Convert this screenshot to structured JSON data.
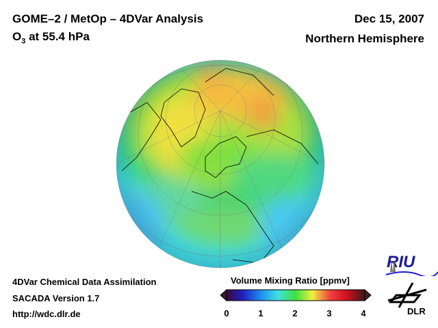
{
  "header": {
    "title": "GOME–2 / MetOp – 4DVar Analysis",
    "species": "O",
    "species_sub": "3",
    "level": " at 55.4 hPa",
    "date": "Dec 15, 2007",
    "region": "Northern Hemisphere"
  },
  "footer": {
    "line1": "4DVar Chemical Data Assimilation",
    "line2": "SACADA Version 1.7",
    "line3": "http://wdc.dlr.de"
  },
  "colorbar": {
    "title": "Volume Mixing Ratio [ppmv]",
    "ticks": [
      "0",
      "1",
      "2",
      "3",
      "4"
    ],
    "min": 0,
    "max": 4
  },
  "logos": {
    "riu": "RIU",
    "dlr": "DLR"
  }
}
